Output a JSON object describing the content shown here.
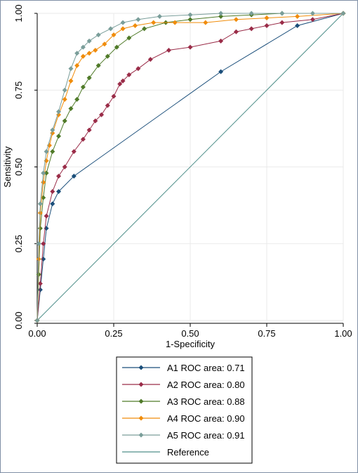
{
  "chart_data": {
    "type": "line",
    "xlabel": "1-Specificity",
    "ylabel": "Sensitivity",
    "xlim": [
      0,
      1
    ],
    "ylim": [
      0,
      1
    ],
    "x_ticks": [
      "0.00",
      "0.25",
      "0.50",
      "0.75",
      "1.00"
    ],
    "y_ticks": [
      "0.00",
      "0.25",
      "0.50",
      "0.75",
      "1.00"
    ],
    "grid": true,
    "legend_position": "bottom",
    "series": [
      {
        "name": "A1 ROC area: 0.71",
        "color": "#1a4e7a",
        "marker": "diamond",
        "x": [
          0,
          0.01,
          0.02,
          0.03,
          0.05,
          0.07,
          0.12,
          0.6,
          0.85,
          1
        ],
        "y": [
          0,
          0.1,
          0.2,
          0.3,
          0.38,
          0.42,
          0.47,
          0.81,
          0.96,
          1
        ]
      },
      {
        "name": "A2 ROC area: 0.80",
        "color": "#9a2c48",
        "marker": "diamond",
        "x": [
          0,
          0.01,
          0.02,
          0.03,
          0.05,
          0.07,
          0.09,
          0.12,
          0.15,
          0.17,
          0.19,
          0.21,
          0.23,
          0.25,
          0.27,
          0.28,
          0.3,
          0.33,
          0.37,
          0.43,
          0.5,
          0.6,
          0.65,
          0.7,
          0.75,
          0.8,
          0.9,
          1
        ],
        "y": [
          0,
          0.12,
          0.25,
          0.34,
          0.42,
          0.47,
          0.5,
          0.55,
          0.59,
          0.62,
          0.65,
          0.67,
          0.7,
          0.73,
          0.77,
          0.78,
          0.8,
          0.82,
          0.85,
          0.88,
          0.89,
          0.91,
          0.94,
          0.95,
          0.96,
          0.97,
          0.98,
          1
        ]
      },
      {
        "name": "A3 ROC area: 0.88",
        "color": "#4f7a28",
        "marker": "diamond",
        "x": [
          0,
          0.005,
          0.01,
          0.02,
          0.03,
          0.05,
          0.07,
          0.09,
          0.11,
          0.13,
          0.15,
          0.17,
          0.2,
          0.23,
          0.26,
          0.3,
          0.35,
          0.42,
          0.5,
          0.6,
          0.7,
          0.8,
          1
        ],
        "y": [
          0,
          0.15,
          0.3,
          0.4,
          0.48,
          0.55,
          0.6,
          0.65,
          0.69,
          0.72,
          0.76,
          0.79,
          0.83,
          0.86,
          0.89,
          0.92,
          0.95,
          0.97,
          0.98,
          0.99,
          0.995,
          1,
          1
        ]
      },
      {
        "name": "A4 ROC area: 0.90",
        "color": "#f08c0a",
        "marker": "diamond",
        "x": [
          0,
          0.005,
          0.01,
          0.02,
          0.03,
          0.04,
          0.05,
          0.07,
          0.09,
          0.11,
          0.13,
          0.15,
          0.17,
          0.19,
          0.22,
          0.25,
          0.28,
          0.32,
          0.38,
          0.45,
          0.55,
          0.65,
          0.75,
          0.85,
          1
        ],
        "y": [
          0,
          0.2,
          0.35,
          0.45,
          0.52,
          0.57,
          0.61,
          0.67,
          0.72,
          0.78,
          0.83,
          0.86,
          0.87,
          0.88,
          0.9,
          0.93,
          0.95,
          0.96,
          0.97,
          0.97,
          0.97,
          0.98,
          0.985,
          0.99,
          1
        ]
      },
      {
        "name": "A5 ROC area: 0.91",
        "color": "#7a9e9a",
        "marker": "diamond",
        "x": [
          0,
          0.005,
          0.01,
          0.02,
          0.03,
          0.05,
          0.07,
          0.09,
          0.11,
          0.13,
          0.15,
          0.17,
          0.2,
          0.24,
          0.28,
          0.33,
          0.4,
          0.5,
          0.6,
          0.7,
          0.8,
          0.9,
          1
        ],
        "y": [
          0,
          0.25,
          0.38,
          0.48,
          0.55,
          0.62,
          0.68,
          0.75,
          0.82,
          0.87,
          0.89,
          0.91,
          0.93,
          0.95,
          0.97,
          0.98,
          0.99,
          0.995,
          1,
          1,
          1,
          1,
          1
        ]
      },
      {
        "name": "Reference",
        "color": "#4f8f8a",
        "marker": "none",
        "x": [
          0,
          1
        ],
        "y": [
          0,
          1
        ]
      }
    ]
  }
}
